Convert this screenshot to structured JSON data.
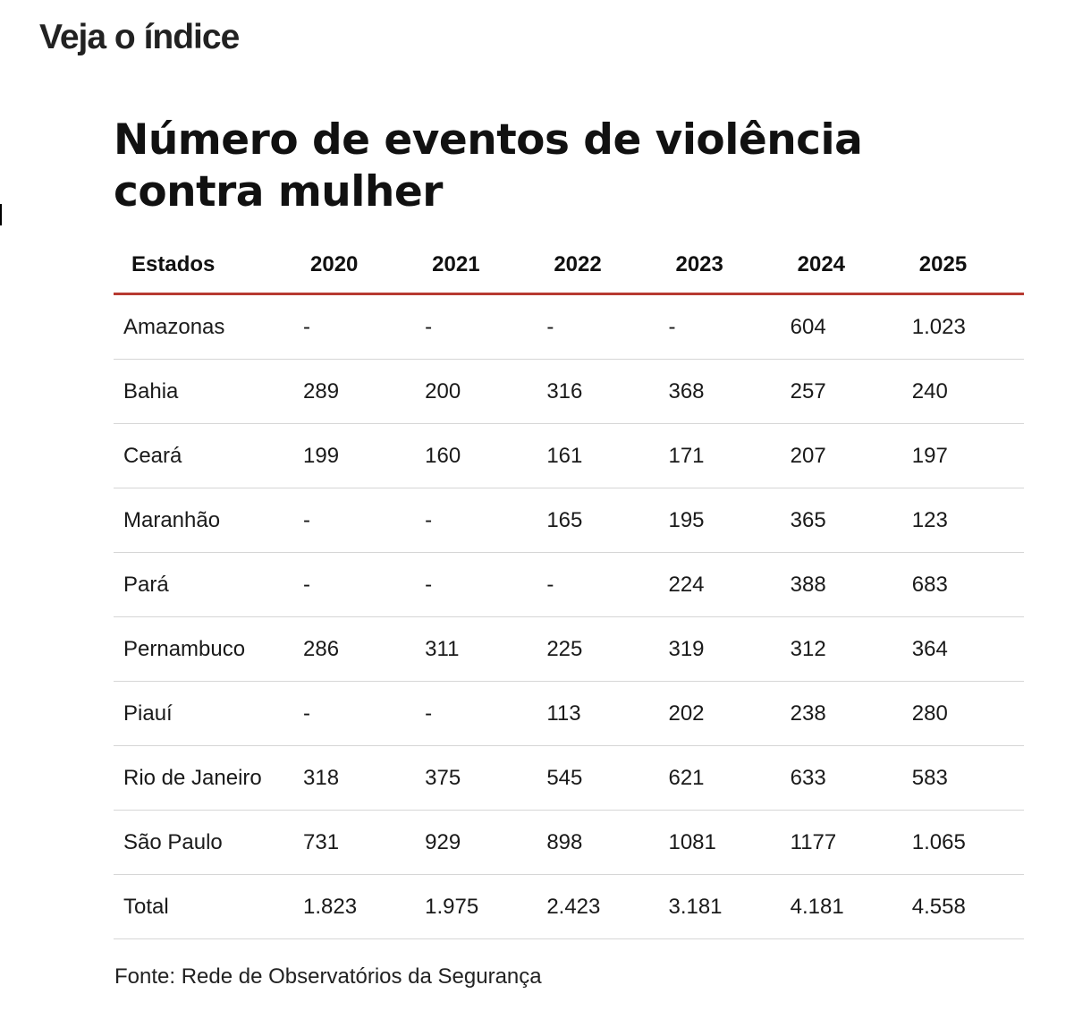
{
  "page": {
    "section_heading": "Veja o índice",
    "source": "Fonte: Rede de Observatórios da Segurança"
  },
  "chart_data": {
    "type": "table",
    "title": "Número de eventos de violência contra mulher",
    "columns": [
      "Estados",
      "2020",
      "2021",
      "2022",
      "2023",
      "2024",
      "2025"
    ],
    "rows": [
      [
        "Amazonas",
        "-",
        "-",
        "-",
        "-",
        "604",
        "1.023"
      ],
      [
        "Bahia",
        "289",
        "200",
        "316",
        "368",
        "257",
        "240"
      ],
      [
        "Ceará",
        "199",
        "160",
        "161",
        "171",
        "207",
        "197"
      ],
      [
        "Maranhão",
        "-",
        "-",
        "165",
        "195",
        "365",
        "123"
      ],
      [
        "Pará",
        "-",
        "-",
        "-",
        "224",
        "388",
        "683"
      ],
      [
        "Pernambuco",
        "286",
        "311",
        "225",
        "319",
        "312",
        "364"
      ],
      [
        "Piauí",
        "-",
        "-",
        "113",
        "202",
        "238",
        "280"
      ],
      [
        "Rio de Janeiro",
        "318",
        "375",
        "545",
        "621",
        "633",
        "583"
      ],
      [
        "São Paulo",
        "731",
        "929",
        "898",
        "1081",
        "1177",
        "1.065"
      ],
      [
        "Total",
        "1.823",
        "1.975",
        "2.423",
        "3.181",
        "4.181",
        "4.558"
      ]
    ],
    "header_rule_color": "#b73a31",
    "source": "Fonte: Rede de Observatórios da Segurança"
  }
}
